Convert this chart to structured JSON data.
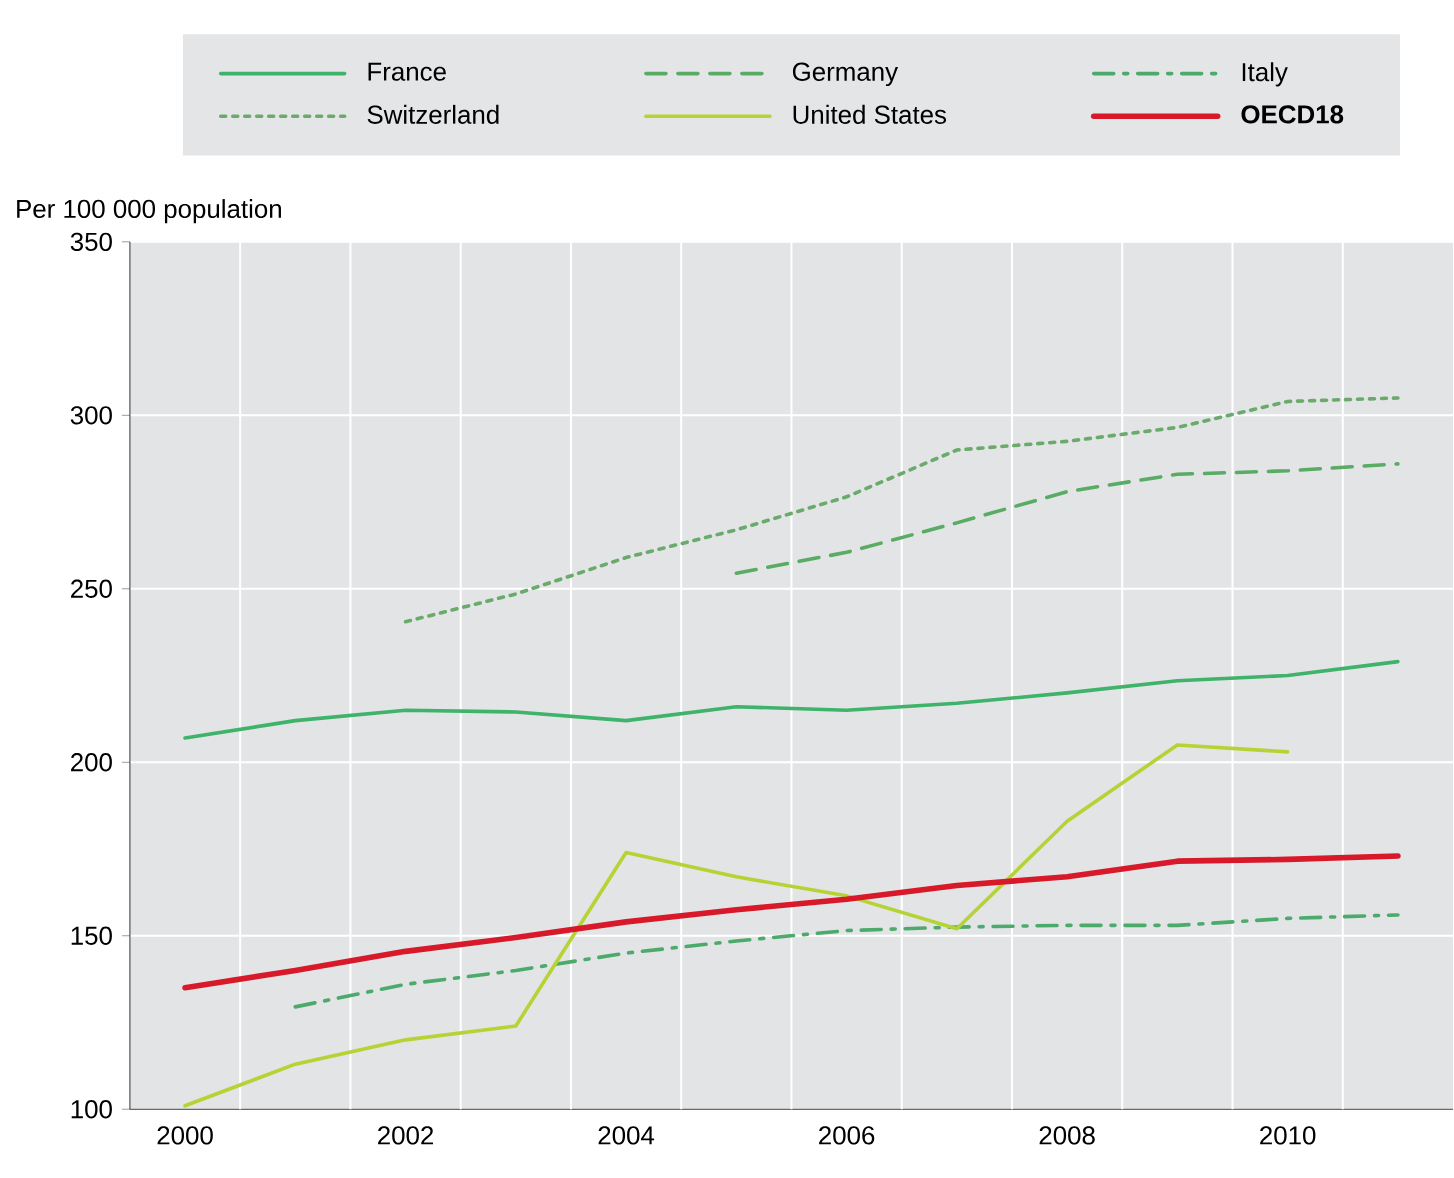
{
  "chart_data": {
    "type": "line",
    "ylabel": "Per 100 000 population",
    "x": [
      2000,
      2001,
      2002,
      2003,
      2004,
      2005,
      2006,
      2007,
      2008,
      2009,
      2010,
      2011
    ],
    "series": [
      {
        "name": "France",
        "color": "#3fb36a",
        "line_style": "solid",
        "values": [
          207,
          212,
          215,
          214.5,
          212,
          216,
          215,
          217,
          220,
          223.5,
          225,
          229
        ]
      },
      {
        "name": "Germany",
        "color": "#5aab64",
        "line_style": "dashed",
        "values": [
          null,
          null,
          null,
          null,
          null,
          254.5,
          260.5,
          269,
          278,
          283,
          284,
          286
        ]
      },
      {
        "name": "Italy",
        "color": "#4caa6a",
        "line_style": "dashdot",
        "values": [
          null,
          129.5,
          136,
          140,
          145,
          148.5,
          151.5,
          152.5,
          153,
          153,
          155,
          156
        ]
      },
      {
        "name": "Switzerland",
        "color": "#6aaa6a",
        "line_style": "dotted",
        "values": [
          null,
          null,
          240.5,
          248.5,
          259,
          267,
          276.5,
          290,
          292.5,
          296.5,
          304,
          305
        ]
      },
      {
        "name": "United States",
        "color": "#b5d334",
        "line_style": "solid",
        "values": [
          101,
          113,
          120,
          124,
          174,
          167,
          161.5,
          152,
          183,
          205,
          203,
          null
        ]
      },
      {
        "name": "**OECD18**",
        "color": "#d7192a",
        "line_style": "solid",
        "values": [
          135,
          140,
          145.5,
          149.5,
          154,
          157.5,
          160.5,
          164.5,
          167,
          171.5,
          172,
          173
        ]
      }
    ],
    "xlim": [
      1999.5,
      2011.5
    ],
    "xticks": [
      2000,
      2002,
      2004,
      2006,
      2008,
      2010,
      {
        "value": 2000.5,
        "label": null
      },
      {
        "value": 2001.5,
        "label": null
      },
      {
        "value": 2002.5,
        "label": null
      },
      {
        "value": 2003.5,
        "label": null
      },
      {
        "value": 2004.5,
        "label": null
      },
      {
        "value": 2005.5,
        "label": null
      },
      {
        "value": 2006.5,
        "label": null
      },
      {
        "value": 2007.5,
        "label": null
      },
      {
        "value": 2008.5,
        "label": null
      },
      {
        "value": 2009.5,
        "label": null
      },
      {
        "value": 2010.5,
        "label": null
      }
    ],
    "ylim": [
      100,
      350
    ],
    "yticks": [
      100,
      150,
      200,
      250,
      300,
      350
    ],
    "grid": true,
    "legend": "top",
    "marker": "none"
  }
}
